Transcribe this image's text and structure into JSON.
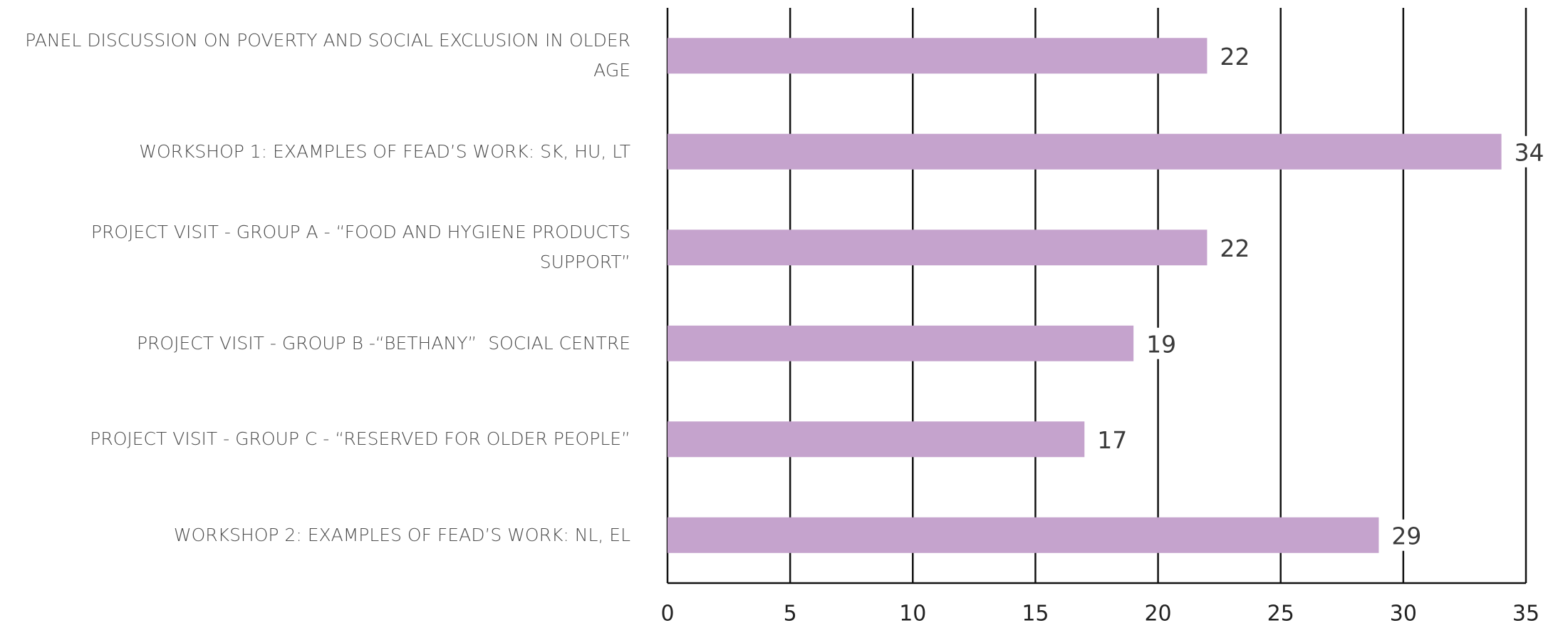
{
  "chart_data": {
    "type": "bar",
    "orientation": "horizontal",
    "categories": [
      "PANEL DISCUSSION ON POVERTY AND SOCIAL EXCLUSION IN OLDER AGE",
      "WORKSHOP 1: EXAMPLES OF FEAD’S WORK: SK, HU, LT",
      "PROJECT VISIT - GROUP A - “FOOD AND HYGIENE PRODUCTS SUPPORT”",
      "PROJECT VISIT - GROUP B -“BETHANY”  SOCIAL CENTRE",
      "PROJECT VISIT - GROUP C - “RESERVED FOR OLDER PEOPLE”",
      "WORKSHOP 2: EXAMPLES OF FEAD’S WORK: NL, EL"
    ],
    "values": [
      22,
      34,
      22,
      19,
      17,
      29
    ],
    "color": "#c5a3cd",
    "xlim": [
      0,
      35
    ],
    "xticks": [
      0,
      5,
      10,
      15,
      20,
      25,
      30,
      35
    ],
    "grid": true
  }
}
